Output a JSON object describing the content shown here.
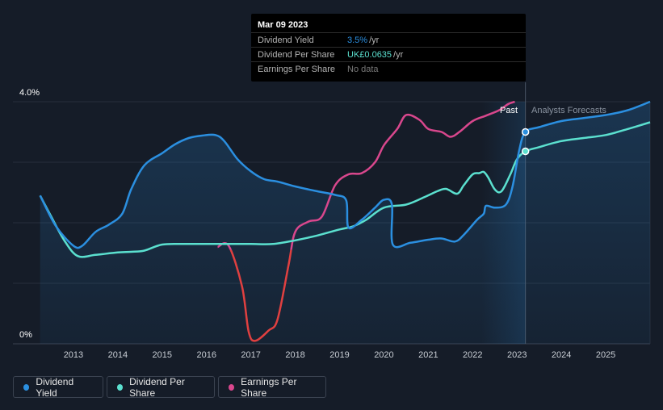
{
  "tooltip": {
    "date": "Mar 09 2023",
    "rows": [
      {
        "label": "Dividend Yield",
        "value": "3.5%",
        "unit": "/yr",
        "color": "#2b8fe0"
      },
      {
        "label": "Dividend Per Share",
        "value": "UK£0.0635",
        "unit": "/yr",
        "color": "#5be0cf"
      },
      {
        "label": "Earnings Per Share",
        "value": "No data",
        "unit": "",
        "color": "#7a7a7a"
      }
    ]
  },
  "regions": {
    "past_label": "Past",
    "forecast_label": "Analysts Forecasts"
  },
  "legend": [
    {
      "label": "Dividend Yield",
      "color": "#2b8fe0"
    },
    {
      "label": "Dividend Per Share",
      "color": "#5be0cf"
    },
    {
      "label": "Earnings Per Share",
      "color": "#d9478d"
    }
  ],
  "chart_data": {
    "type": "line",
    "title": "",
    "xlabel": "",
    "ylabel": "",
    "xlim": [
      2012.2,
      2026.0
    ],
    "ylim": [
      0,
      4.0
    ],
    "y_ticks": [
      "0%",
      "4.0%"
    ],
    "x_ticks": [
      "2013",
      "2014",
      "2015",
      "2016",
      "2017",
      "2018",
      "2019",
      "2020",
      "2021",
      "2022",
      "2023",
      "2024",
      "2025"
    ],
    "past_region": [
      2022.2,
      2023.19
    ],
    "today": 2023.19,
    "grid": true,
    "legend_position": "bottom-left",
    "series": [
      {
        "name": "Dividend Yield",
        "color": "#2b8fe0",
        "points": [
          [
            2012.25,
            2.45
          ],
          [
            2012.6,
            1.95
          ],
          [
            2013.0,
            1.62
          ],
          [
            2013.2,
            1.62
          ],
          [
            2013.5,
            1.85
          ],
          [
            2013.8,
            1.97
          ],
          [
            2014.1,
            2.15
          ],
          [
            2014.3,
            2.55
          ],
          [
            2014.6,
            2.95
          ],
          [
            2015.0,
            3.15
          ],
          [
            2015.3,
            3.3
          ],
          [
            2015.6,
            3.4
          ],
          [
            2015.9,
            3.44
          ],
          [
            2016.2,
            3.45
          ],
          [
            2016.4,
            3.35
          ],
          [
            2016.7,
            3.05
          ],
          [
            2017.0,
            2.85
          ],
          [
            2017.3,
            2.72
          ],
          [
            2017.6,
            2.68
          ],
          [
            2018.0,
            2.6
          ],
          [
            2018.5,
            2.52
          ],
          [
            2018.9,
            2.46
          ],
          [
            2019.15,
            2.37
          ],
          [
            2019.2,
            1.92
          ],
          [
            2019.5,
            2.05
          ],
          [
            2019.8,
            2.25
          ],
          [
            2020.0,
            2.38
          ],
          [
            2020.18,
            2.3
          ],
          [
            2020.2,
            1.64
          ],
          [
            2020.6,
            1.67
          ],
          [
            2021.0,
            1.72
          ],
          [
            2021.3,
            1.74
          ],
          [
            2021.6,
            1.69
          ],
          [
            2021.8,
            1.8
          ],
          [
            2022.1,
            2.05
          ],
          [
            2022.25,
            2.15
          ],
          [
            2022.3,
            2.28
          ],
          [
            2022.5,
            2.25
          ],
          [
            2022.75,
            2.3
          ],
          [
            2022.9,
            2.6
          ],
          [
            2023.05,
            3.2
          ],
          [
            2023.19,
            3.5
          ],
          [
            2023.5,
            3.58
          ],
          [
            2024.0,
            3.68
          ],
          [
            2024.5,
            3.73
          ],
          [
            2025.0,
            3.78
          ],
          [
            2025.5,
            3.86
          ],
          [
            2026.0,
            4.0
          ]
        ]
      },
      {
        "name": "Dividend Per Share",
        "color": "#5be0cf",
        "points": [
          [
            2012.25,
            2.45
          ],
          [
            2012.5,
            2.1
          ],
          [
            2012.8,
            1.7
          ],
          [
            2013.1,
            1.45
          ],
          [
            2013.5,
            1.47
          ],
          [
            2014.0,
            1.51
          ],
          [
            2014.3,
            1.52
          ],
          [
            2014.6,
            1.54
          ],
          [
            2015.0,
            1.64
          ],
          [
            2015.5,
            1.65
          ],
          [
            2016.0,
            1.65
          ],
          [
            2016.5,
            1.65
          ],
          [
            2017.0,
            1.65
          ],
          [
            2017.5,
            1.65
          ],
          [
            2018.0,
            1.71
          ],
          [
            2018.5,
            1.79
          ],
          [
            2019.0,
            1.89
          ],
          [
            2019.3,
            1.94
          ],
          [
            2019.6,
            2.05
          ],
          [
            2020.0,
            2.25
          ],
          [
            2020.5,
            2.3
          ],
          [
            2020.9,
            2.42
          ],
          [
            2021.2,
            2.52
          ],
          [
            2021.4,
            2.56
          ],
          [
            2021.65,
            2.48
          ],
          [
            2021.8,
            2.62
          ],
          [
            2022.0,
            2.8
          ],
          [
            2022.15,
            2.82
          ],
          [
            2022.25,
            2.84
          ],
          [
            2022.35,
            2.75
          ],
          [
            2022.5,
            2.55
          ],
          [
            2022.65,
            2.52
          ],
          [
            2022.85,
            2.8
          ],
          [
            2023.0,
            3.05
          ],
          [
            2023.19,
            3.18
          ],
          [
            2023.5,
            3.25
          ],
          [
            2024.0,
            3.35
          ],
          [
            2024.5,
            3.4
          ],
          [
            2025.0,
            3.45
          ],
          [
            2025.5,
            3.55
          ],
          [
            2026.0,
            3.66
          ]
        ]
      },
      {
        "name": "Earnings Per Share",
        "color": "#d9478d",
        "points": [
          [
            2016.25,
            1.6
          ],
          [
            2016.5,
            1.62
          ],
          [
            2016.8,
            0.95
          ],
          [
            2016.95,
            0.2
          ],
          [
            2017.1,
            0.05
          ],
          [
            2017.4,
            0.22
          ],
          [
            2017.6,
            0.4
          ],
          [
            2017.85,
            1.3
          ],
          [
            2018.0,
            1.85
          ],
          [
            2018.3,
            2.02
          ],
          [
            2018.6,
            2.1
          ],
          [
            2018.9,
            2.62
          ],
          [
            2019.2,
            2.8
          ],
          [
            2019.5,
            2.82
          ],
          [
            2019.8,
            3.0
          ],
          [
            2020.0,
            3.28
          ],
          [
            2020.3,
            3.55
          ],
          [
            2020.5,
            3.78
          ],
          [
            2020.8,
            3.7
          ],
          [
            2021.0,
            3.55
          ],
          [
            2021.3,
            3.5
          ],
          [
            2021.5,
            3.42
          ],
          [
            2021.7,
            3.5
          ],
          [
            2022.0,
            3.68
          ],
          [
            2022.3,
            3.77
          ],
          [
            2022.6,
            3.86
          ],
          [
            2022.8,
            3.96
          ],
          [
            2022.95,
            4.0
          ]
        ]
      }
    ]
  }
}
